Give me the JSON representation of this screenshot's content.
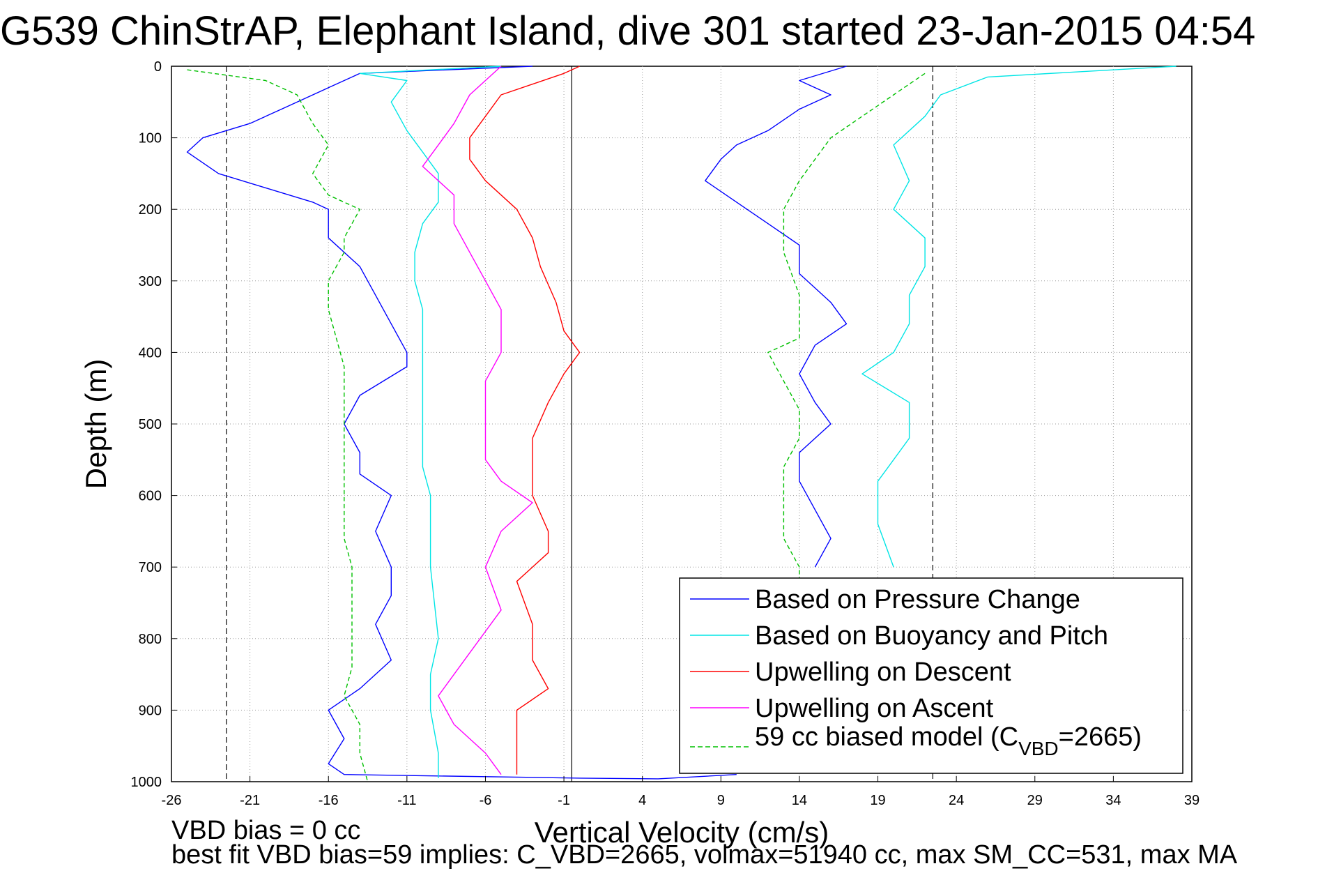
{
  "chart_data": {
    "type": "line",
    "title": "G539 ChinStrAP, Elephant Island, dive 301 started 23-Jan-2015 04:54",
    "xlabel": "Vertical Velocity (cm/s)",
    "ylabel": "Depth (m)",
    "xlim": [
      -26,
      39
    ],
    "ylim": [
      0,
      1000
    ],
    "y_reversed": true,
    "grid": true,
    "xticks": [
      -26,
      -21,
      -16,
      -11,
      -6,
      -1,
      4,
      9,
      14,
      19,
      24,
      29,
      34,
      39
    ],
    "xtick_labels": [
      "-26",
      "-21",
      "-16",
      "-11",
      "-6",
      "-1",
      "4",
      "9",
      "14",
      "19",
      "24",
      "29",
      "34",
      "39"
    ],
    "yticks": [
      0,
      100,
      200,
      300,
      400,
      500,
      600,
      700,
      800,
      900,
      1000
    ],
    "ytick_labels": [
      "0",
      "100",
      "200",
      "300",
      "400",
      "500",
      "600",
      "700",
      "800",
      "900",
      "1000"
    ],
    "legend_position": "bottom-right",
    "legend": {
      "pressure": "Based on Pressure Change",
      "buoyancy": "Based on Buoyancy and Pitch",
      "upwell_descent": "Upwelling on Descent",
      "upwell_ascent": "Upwelling on Ascent",
      "model_prefix": "59 cc biased model (C",
      "model_sub": "VBD",
      "model_suffix": "=2665)"
    },
    "reference_lines": [
      {
        "x": -22.5,
        "style": "dashed"
      },
      {
        "x": -0.5,
        "style": "solid"
      },
      {
        "x": 22.5,
        "style": "dashed"
      }
    ],
    "series": [
      {
        "key": "pressure_descent",
        "color": "#0000ff",
        "points": [
          [
            -3,
            0
          ],
          [
            -14,
            10
          ],
          [
            -16,
            30
          ],
          [
            -19,
            60
          ],
          [
            -21,
            80
          ],
          [
            -24,
            100
          ],
          [
            -25,
            120
          ],
          [
            -23,
            150
          ],
          [
            -20,
            170
          ],
          [
            -17,
            190
          ],
          [
            -16,
            200
          ],
          [
            -16,
            240
          ],
          [
            -14,
            280
          ],
          [
            -13,
            320
          ],
          [
            -12,
            360
          ],
          [
            -11,
            400
          ],
          [
            -11,
            420
          ],
          [
            -14,
            460
          ],
          [
            -15,
            500
          ],
          [
            -14,
            540
          ],
          [
            -14,
            570
          ],
          [
            -12,
            600
          ],
          [
            -13,
            650
          ],
          [
            -12,
            700
          ],
          [
            -12,
            740
          ],
          [
            -13,
            780
          ],
          [
            -12,
            830
          ],
          [
            -14,
            870
          ],
          [
            -16,
            900
          ],
          [
            -15,
            940
          ],
          [
            -16,
            975
          ],
          [
            -15,
            990
          ],
          [
            0,
            995
          ],
          [
            5,
            996
          ],
          [
            10,
            990
          ]
        ]
      },
      {
        "key": "pressure_ascent",
        "color": "#0000ff",
        "points": [
          [
            17,
            0
          ],
          [
            14,
            20
          ],
          [
            16,
            40
          ],
          [
            14,
            60
          ],
          [
            12,
            90
          ],
          [
            10,
            110
          ],
          [
            9,
            130
          ],
          [
            8,
            160
          ],
          [
            10,
            190
          ],
          [
            12,
            220
          ],
          [
            14,
            250
          ],
          [
            14,
            290
          ],
          [
            16,
            330
          ],
          [
            17,
            360
          ],
          [
            15,
            390
          ],
          [
            14,
            430
          ],
          [
            15,
            470
          ],
          [
            16,
            500
          ],
          [
            14,
            540
          ],
          [
            14,
            580
          ],
          [
            15,
            620
          ],
          [
            16,
            660
          ],
          [
            15,
            700
          ]
        ]
      },
      {
        "key": "buoyancy_descent",
        "color": "#00e5e5",
        "points": [
          [
            -5,
            0
          ],
          [
            -14,
            10
          ],
          [
            -11,
            20
          ],
          [
            -12,
            50
          ],
          [
            -11,
            90
          ],
          [
            -10,
            120
          ],
          [
            -9,
            150
          ],
          [
            -9,
            190
          ],
          [
            -10,
            220
          ],
          [
            -10.5,
            260
          ],
          [
            -10.5,
            300
          ],
          [
            -10,
            340
          ],
          [
            -10,
            380
          ],
          [
            -10,
            420
          ],
          [
            -10,
            470
          ],
          [
            -10,
            520
          ],
          [
            -10,
            560
          ],
          [
            -9.5,
            600
          ],
          [
            -9.5,
            700
          ],
          [
            -9,
            800
          ],
          [
            -9.5,
            850
          ],
          [
            -9.5,
            900
          ],
          [
            -9,
            960
          ],
          [
            -9,
            995
          ]
        ]
      },
      {
        "key": "buoyancy_ascent",
        "color": "#00e5e5",
        "points": [
          [
            38,
            0
          ],
          [
            26,
            15
          ],
          [
            23,
            40
          ],
          [
            22,
            70
          ],
          [
            20,
            110
          ],
          [
            21,
            160
          ],
          [
            20,
            200
          ],
          [
            22,
            240
          ],
          [
            22,
            280
          ],
          [
            21,
            320
          ],
          [
            21,
            360
          ],
          [
            20,
            400
          ],
          [
            18,
            430
          ],
          [
            21,
            470
          ],
          [
            21,
            520
          ],
          [
            19,
            580
          ],
          [
            19,
            640
          ],
          [
            20,
            700
          ]
        ]
      },
      {
        "key": "upwelling_descent",
        "color": "#ff0000",
        "points": [
          [
            0,
            0
          ],
          [
            -1,
            10
          ],
          [
            -5,
            40
          ],
          [
            -6,
            70
          ],
          [
            -7,
            100
          ],
          [
            -7,
            130
          ],
          [
            -6,
            160
          ],
          [
            -4,
            200
          ],
          [
            -3,
            240
          ],
          [
            -2.5,
            280
          ],
          [
            -1.5,
            330
          ],
          [
            -1,
            370
          ],
          [
            0,
            400
          ],
          [
            -1,
            430
          ],
          [
            -2,
            470
          ],
          [
            -3,
            520
          ],
          [
            -3,
            560
          ],
          [
            -3,
            600
          ],
          [
            -2,
            650
          ],
          [
            -2,
            680
          ],
          [
            -4,
            720
          ],
          [
            -3,
            780
          ],
          [
            -3,
            830
          ],
          [
            -2,
            870
          ],
          [
            -4,
            900
          ],
          [
            -4,
            940
          ],
          [
            -4,
            990
          ]
        ]
      },
      {
        "key": "upwelling_ascent",
        "color": "#ff00ff",
        "points": [
          [
            -5,
            0
          ],
          [
            -7,
            40
          ],
          [
            -8,
            80
          ],
          [
            -9,
            110
          ],
          [
            -10,
            140
          ],
          [
            -8,
            180
          ],
          [
            -8,
            220
          ],
          [
            -7,
            260
          ],
          [
            -6,
            300
          ],
          [
            -5,
            340
          ],
          [
            -5,
            370
          ],
          [
            -5,
            400
          ],
          [
            -6,
            440
          ],
          [
            -6,
            480
          ],
          [
            -6,
            520
          ],
          [
            -6,
            550
          ],
          [
            -5,
            580
          ],
          [
            -3,
            610
          ],
          [
            -5,
            650
          ],
          [
            -6,
            700
          ],
          [
            -5,
            760
          ],
          [
            -7,
            820
          ],
          [
            -9,
            880
          ],
          [
            -8,
            920
          ],
          [
            -6,
            960
          ],
          [
            -5,
            990
          ]
        ]
      },
      {
        "key": "model_descent",
        "color": "#00c000",
        "dashed": true,
        "points": [
          [
            -25,
            5
          ],
          [
            -20,
            20
          ],
          [
            -18,
            40
          ],
          [
            -17,
            80
          ],
          [
            -16,
            110
          ],
          [
            -17,
            150
          ],
          [
            -16,
            180
          ],
          [
            -14,
            200
          ],
          [
            -15,
            240
          ],
          [
            -15,
            260
          ],
          [
            -16,
            300
          ],
          [
            -16,
            340
          ],
          [
            -15.5,
            380
          ],
          [
            -15,
            420
          ],
          [
            -15,
            460
          ],
          [
            -15,
            500
          ],
          [
            -15,
            540
          ],
          [
            -15,
            580
          ],
          [
            -15,
            620
          ],
          [
            -15,
            660
          ],
          [
            -14.5,
            700
          ],
          [
            -14.5,
            750
          ],
          [
            -14.5,
            800
          ],
          [
            -14.5,
            840
          ],
          [
            -15,
            880
          ],
          [
            -14,
            920
          ],
          [
            -14,
            960
          ],
          [
            -13.5,
            1000
          ]
        ]
      },
      {
        "key": "model_ascent",
        "color": "#00c000",
        "dashed": true,
        "points": [
          [
            22,
            10
          ],
          [
            20,
            40
          ],
          [
            18,
            70
          ],
          [
            16,
            100
          ],
          [
            15,
            130
          ],
          [
            14,
            160
          ],
          [
            13,
            200
          ],
          [
            13,
            260
          ],
          [
            14,
            320
          ],
          [
            14,
            380
          ],
          [
            12,
            400
          ],
          [
            13,
            440
          ],
          [
            14,
            480
          ],
          [
            14,
            520
          ],
          [
            13,
            560
          ],
          [
            13,
            600
          ],
          [
            13,
            660
          ],
          [
            14,
            700
          ],
          [
            14,
            720
          ]
        ]
      }
    ]
  },
  "annotations": {
    "bias_line": "VBD bias = 0 cc",
    "fit_line": "best fit VBD bias=59 implies: C_VBD=2665, volmax=51940 cc, max SM_CC=531, max MA"
  }
}
